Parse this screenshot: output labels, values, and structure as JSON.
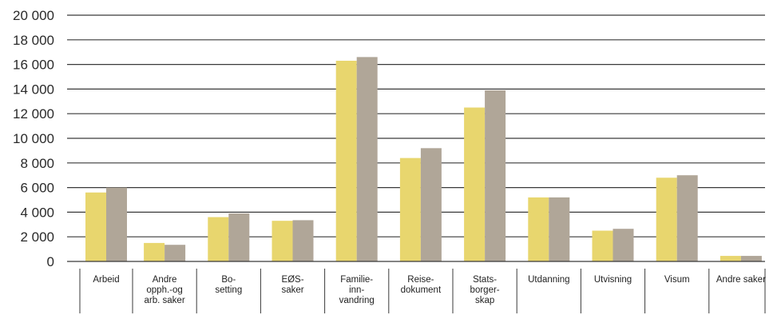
{
  "chart_data": {
    "type": "bar",
    "title": "",
    "xlabel": "",
    "ylabel": "",
    "ylim": [
      0,
      20000
    ],
    "yticks": [
      0,
      2000,
      4000,
      6000,
      8000,
      10000,
      12000,
      14000,
      16000,
      18000,
      20000
    ],
    "ytick_labels": [
      "0",
      "2 000",
      "4 000",
      "6 000",
      "8 000",
      "10 000",
      "12 000",
      "14 000",
      "16 000",
      "18 000",
      "20 000"
    ],
    "grid": true,
    "legend": "none",
    "categories": [
      [
        "Arbeid"
      ],
      [
        "Andre",
        "opph.-og",
        "arb. saker"
      ],
      [
        "Bo-",
        "setting"
      ],
      [
        "EØS-",
        "saker"
      ],
      [
        "Familie-",
        "inn-",
        "vandring"
      ],
      [
        "Reise-",
        "dokument"
      ],
      [
        "Stats-",
        "borger-",
        "skap"
      ],
      [
        "Utdanning"
      ],
      [
        "Utvisning"
      ],
      [
        "Visum"
      ],
      [
        "Andre saker"
      ]
    ],
    "series": [
      {
        "color": "#e8d66e",
        "values": [
          5600,
          1500,
          3600,
          3300,
          16300,
          8400,
          12500,
          5200,
          2500,
          6800,
          450
        ]
      },
      {
        "color": "#b0a698",
        "values": [
          6000,
          1350,
          3900,
          3350,
          16600,
          9200,
          13900,
          5200,
          2650,
          7000,
          450
        ]
      }
    ]
  }
}
